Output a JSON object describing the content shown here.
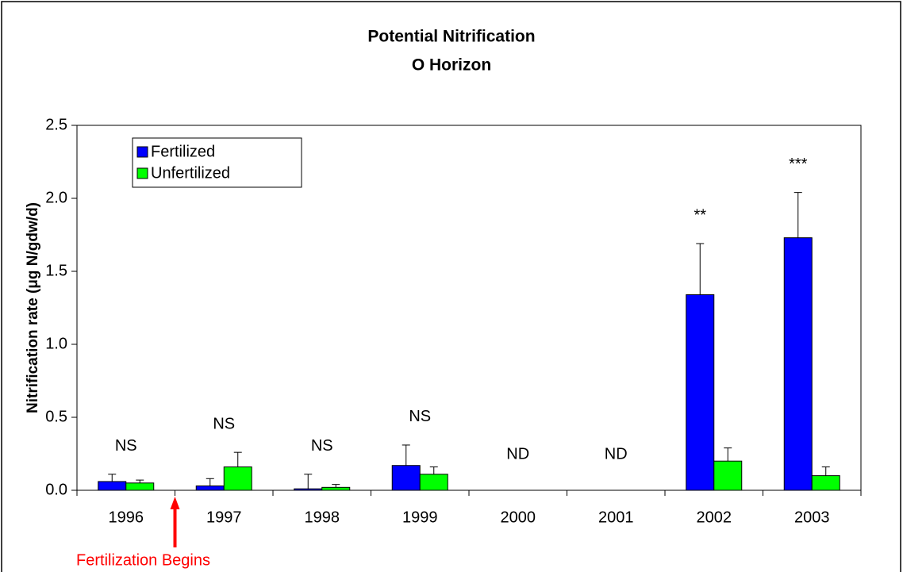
{
  "chart_data": {
    "type": "bar",
    "title": "Potential Nitrification",
    "subtitle": "O Horizon",
    "y_label": "Nitrification rate (μg N/gdw/d)",
    "categories": [
      "1996",
      "1997",
      "1998",
      "1999",
      "2000",
      "2001",
      "2002",
      "2003"
    ],
    "series": [
      {
        "name": "Fertilized",
        "color": "#0000ff",
        "values": [
          0.06,
          0.03,
          0.01,
          0.17,
          null,
          null,
          1.34,
          1.73
        ],
        "errors": [
          0.05,
          0.05,
          0.1,
          0.14,
          null,
          null,
          0.35,
          0.31
        ]
      },
      {
        "name": "Unfertilized",
        "color": "#00ff00",
        "values": [
          0.05,
          0.16,
          0.02,
          0.11,
          null,
          null,
          0.2,
          0.1
        ],
        "errors": [
          0.02,
          0.1,
          0.02,
          0.05,
          null,
          null,
          0.09,
          0.06
        ]
      }
    ],
    "significance": [
      "NS",
      "NS",
      "NS",
      "NS",
      "ND",
      "ND",
      "**",
      "***"
    ],
    "annotation": "Fertilization Begins",
    "annotation_color": "#ff0000",
    "ylim": [
      0,
      2.5
    ],
    "yticks": [
      {
        "value": 0,
        "label": "0.0"
      },
      {
        "value": 0.5,
        "label": "0.5"
      },
      {
        "value": 1,
        "label": "1.0"
      },
      {
        "value": 1.5,
        "label": "1.5"
      },
      {
        "value": 2,
        "label": "2.0"
      },
      {
        "value": 2.5,
        "label": "2.5"
      }
    ],
    "legend": "upper left"
  }
}
